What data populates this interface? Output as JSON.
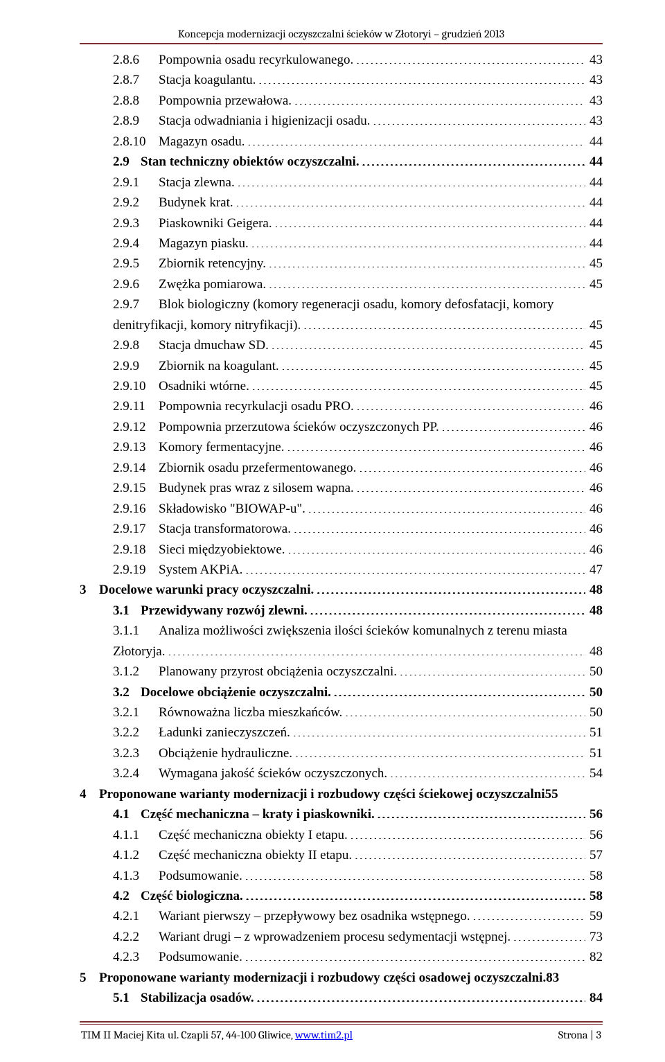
{
  "running_head": "Koncepcja modernizacji oczyszczalni ścieków w Złotoryi – grudzień 2013",
  "footer_left_pre": "TIM II Maciej Kita ul. Czapli 57, 44-100 Gliwice, ",
  "footer_link": "www.tim2.pl",
  "footer_right": "Strona | 3",
  "toc": [
    {
      "cls": "lvl3",
      "num": "2.8.6",
      "title": "Pompownia osadu recyrkulowanego.",
      "page": "43"
    },
    {
      "cls": "lvl3",
      "num": "2.8.7",
      "title": "Stacja koagulantu.",
      "page": "43"
    },
    {
      "cls": "lvl3",
      "num": "2.8.8",
      "title": "Pompownia przewałowa.",
      "page": "43"
    },
    {
      "cls": "lvl3",
      "num": "2.8.9",
      "title": "Stacja odwadniania i higienizacji osadu.",
      "page": "43"
    },
    {
      "cls": "lvl3",
      "num": "2.8.10",
      "title": "Magazyn osadu.",
      "page": "44"
    },
    {
      "cls": "lvl2",
      "num": "2.9",
      "title": "Stan techniczny obiektów oczyszczalni.",
      "page": "44"
    },
    {
      "cls": "lvl3",
      "num": "2.9.1",
      "title": "Stacja zlewna.",
      "page": "44"
    },
    {
      "cls": "lvl3",
      "num": "2.9.2",
      "title": "Budynek krat.",
      "page": "44"
    },
    {
      "cls": "lvl3",
      "num": "2.9.3",
      "title": "Piaskowniki Geigera.",
      "page": "44"
    },
    {
      "cls": "lvl3",
      "num": "2.9.4",
      "title": "Magazyn piasku.",
      "page": "44"
    },
    {
      "cls": "lvl3",
      "num": "2.9.5",
      "title": "Zbiornik retencyjny.",
      "page": "45"
    },
    {
      "cls": "lvl3",
      "num": "2.9.6",
      "title": "Zwężka pomiarowa.",
      "page": "45"
    },
    {
      "cls": "lvl3",
      "num": "2.9.7",
      "title": "Blok biologiczny (komory regeneracji osadu, komory defosfatacji, komory",
      "cont": "denitryfikacji, komory nitryfikacji).",
      "page": "45"
    },
    {
      "cls": "lvl3",
      "num": "2.9.8",
      "title": "Stacja dmuchaw SD.",
      "page": "45"
    },
    {
      "cls": "lvl3",
      "num": "2.9.9",
      "title": "Zbiornik na koagulant.",
      "page": "45"
    },
    {
      "cls": "lvl3",
      "num": "2.9.10",
      "title": "Osadniki wtórne.",
      "page": "45"
    },
    {
      "cls": "lvl3",
      "num": "2.9.11",
      "title": "Pompownia recyrkulacji osadu PRO.",
      "page": "46"
    },
    {
      "cls": "lvl3",
      "num": "2.9.12",
      "title": "Pompownia przerzutowa ścieków oczyszczonych PP.",
      "page": "46"
    },
    {
      "cls": "lvl3",
      "num": "2.9.13",
      "title": "Komory fermentacyjne.",
      "page": "46"
    },
    {
      "cls": "lvl3",
      "num": "2.9.14",
      "title": "Zbiornik osadu przefermentowanego.",
      "page": "46"
    },
    {
      "cls": "lvl3",
      "num": "2.9.15",
      "title": "Budynek pras wraz z silosem wapna.",
      "page": "46"
    },
    {
      "cls": "lvl3",
      "num": "2.9.16",
      "title": "Składowisko \"BIOWAP-u\".",
      "page": "46"
    },
    {
      "cls": "lvl3",
      "num": "2.9.17",
      "title": "Stacja transformatorowa.",
      "page": "46"
    },
    {
      "cls": "lvl3",
      "num": "2.9.18",
      "title": "Sieci międzyobiektowe.",
      "page": "46"
    },
    {
      "cls": "lvl3",
      "num": "2.9.19",
      "title": "System AKPiA.",
      "page": "47"
    },
    {
      "cls": "lvl1",
      "num": "3",
      "title": "Docelowe warunki pracy oczyszczalni.",
      "page": "48"
    },
    {
      "cls": "lvl2",
      "num": "3.1",
      "title": "Przewidywany rozwój zlewni.",
      "page": "48"
    },
    {
      "cls": "lvl3",
      "num": "3.1.1",
      "title": "Analiza możliwości zwiększenia ilości ścieków komunalnych z terenu miasta",
      "cont": "Złotoryja.",
      "page": "48"
    },
    {
      "cls": "lvl3",
      "num": "3.1.2",
      "title": "Planowany przyrost obciążenia oczyszczalni.",
      "page": "50"
    },
    {
      "cls": "lvl2",
      "num": "3.2",
      "title": "Docelowe obciążenie oczyszczalni.",
      "page": "50"
    },
    {
      "cls": "lvl3",
      "num": "3.2.1",
      "title": "Równoważna liczba mieszkańców.",
      "page": "50"
    },
    {
      "cls": "lvl3",
      "num": "3.2.2",
      "title": "Ładunki zanieczyszczeń.",
      "page": "51"
    },
    {
      "cls": "lvl3",
      "num": "3.2.3",
      "title": "Obciążenie hydrauliczne.",
      "page": "51"
    },
    {
      "cls": "lvl3",
      "num": "3.2.4",
      "title": "Wymagana jakość ścieków oczyszczonych.",
      "page": "54"
    },
    {
      "cls": "lvl1",
      "num": "4",
      "title": "Proponowane warianty modernizacji i rozbudowy części ściekowej oczyszczalni55",
      "nodots": true
    },
    {
      "cls": "lvl2",
      "num": "4.1",
      "title": "Część mechaniczna – kraty i piaskowniki.",
      "page": "56"
    },
    {
      "cls": "lvl3",
      "num": "4.1.1",
      "title": "Część mechaniczna obiekty I etapu.",
      "page": "56"
    },
    {
      "cls": "lvl3",
      "num": "4.1.2",
      "title": "Część mechaniczna obiekty II etapu.",
      "page": "57"
    },
    {
      "cls": "lvl3",
      "num": "4.1.3",
      "title": "Podsumowanie.",
      "page": "58"
    },
    {
      "cls": "lvl2",
      "num": "4.2",
      "title": "Część biologiczna.",
      "page": "58"
    },
    {
      "cls": "lvl3",
      "num": "4.2.1",
      "title": "Wariant pierwszy – przepływowy bez osadnika wstępnego.",
      "page": "59"
    },
    {
      "cls": "lvl3",
      "num": "4.2.2",
      "title": "Wariant drugi – z wprowadzeniem procesu sedymentacji wstępnej.",
      "page": "73"
    },
    {
      "cls": "lvl3",
      "num": "4.2.3",
      "title": "Podsumowanie.",
      "page": "82"
    },
    {
      "cls": "lvl1",
      "num": "5",
      "title": "Proponowane warianty modernizacji i rozbudowy części osadowej oczyszczalni.83",
      "nodots": true
    },
    {
      "cls": "lvl2",
      "num": "5.1",
      "title": "Stabilizacja osadów.",
      "page": "84"
    }
  ]
}
